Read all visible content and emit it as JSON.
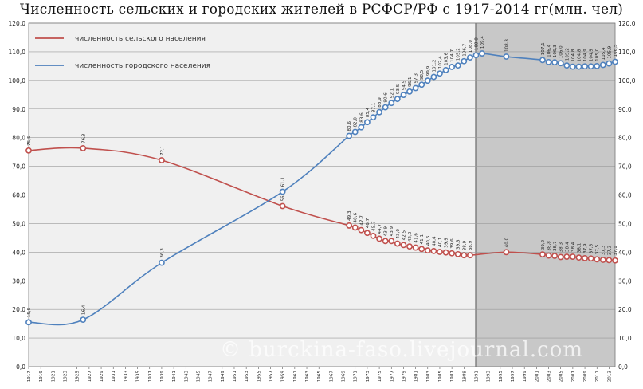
{
  "title": "Численность сельских и городских жителей в РСФСР/РФ с 1917-2014 гг(млн. чел)",
  "watermark": "© burckina-faso.livejournal.com",
  "colors": {
    "rural": "#c0504d",
    "urban": "#4f81bd",
    "shaded": "#c8c8c8",
    "plot_bg": "#f0f0f0"
  },
  "chart_data": {
    "type": "line",
    "title": "Численность сельских и городских жителей в РСФСР/РФ с 1917-2014 гг(млн. чел)",
    "xlabel": "",
    "ylabel": "",
    "xlim": [
      1917,
      2014
    ],
    "ylim": [
      0,
      120
    ],
    "ytick_step": 10,
    "grid": true,
    "legend_position": "top-left",
    "shaded_region": [
      1991,
      2014
    ],
    "x_tick_labels": [
      "1917",
      "1919",
      "1921",
      "1923",
      "1925",
      "1927",
      "1929",
      "1931",
      "1933",
      "1935",
      "1937",
      "1939",
      "1941",
      "1943",
      "1945",
      "1947",
      "1949",
      "1951",
      "1953",
      "1955",
      "1957",
      "1959",
      "1961",
      "1963",
      "1965",
      "1967",
      "1969",
      "1971",
      "1973",
      "1975",
      "1977",
      "1979",
      "1981",
      "1983",
      "1985",
      "1987",
      "1989",
      "1991",
      "1993",
      "1995",
      "1997",
      "1999",
      "2001",
      "2003",
      "2005",
      "2007",
      "2009",
      "2011",
      "2013"
    ],
    "series": [
      {
        "name": "численность сельского населения",
        "color": "#c0504d",
        "points": [
          {
            "x": 1917,
            "y": 75.5
          },
          {
            "x": 1926,
            "y": 76.3
          },
          {
            "x": 1939,
            "y": 72.1
          },
          {
            "x": 1959,
            "y": 56.1
          },
          {
            "x": 1970,
            "y": 49.3
          },
          {
            "x": 1971,
            "y": 48.6
          },
          {
            "x": 1972,
            "y": 47.7
          },
          {
            "x": 1973,
            "y": 46.7
          },
          {
            "x": 1974,
            "y": 45.7
          },
          {
            "x": 1975,
            "y": 44.7
          },
          {
            "x": 1976,
            "y": 43.9
          },
          {
            "x": 1977,
            "y": 43.9
          },
          {
            "x": 1978,
            "y": 43.0
          },
          {
            "x": 1979,
            "y": 42.5
          },
          {
            "x": 1980,
            "y": 42.0
          },
          {
            "x": 1981,
            "y": 41.6
          },
          {
            "x": 1982,
            "y": 41.1
          },
          {
            "x": 1983,
            "y": 40.6
          },
          {
            "x": 1984,
            "y": 40.4
          },
          {
            "x": 1985,
            "y": 40.1
          },
          {
            "x": 1986,
            "y": 39.9
          },
          {
            "x": 1987,
            "y": 39.6
          },
          {
            "x": 1988,
            "y": 39.3
          },
          {
            "x": 1989,
            "y": 38.9
          },
          {
            "x": 1990,
            "y": 38.9
          },
          {
            "x": 1996,
            "y": 40.0
          },
          {
            "x": 2002,
            "y": 39.2
          },
          {
            "x": 2003,
            "y": 38.8
          },
          {
            "x": 2004,
            "y": 38.7
          },
          {
            "x": 2005,
            "y": 38.3
          },
          {
            "x": 2006,
            "y": 38.4
          },
          {
            "x": 2007,
            "y": 38.4
          },
          {
            "x": 2008,
            "y": 38.1
          },
          {
            "x": 2009,
            "y": 37.9
          },
          {
            "x": 2010,
            "y": 37.8
          },
          {
            "x": 2011,
            "y": 37.5
          },
          {
            "x": 2012,
            "y": 37.3
          },
          {
            "x": 2013,
            "y": 37.2
          },
          {
            "x": 2014,
            "y": 37.1
          }
        ]
      },
      {
        "name": "численность городского населения",
        "color": "#4f81bd",
        "points": [
          {
            "x": 1917,
            "y": 15.5
          },
          {
            "x": 1926,
            "y": 16.4
          },
          {
            "x": 1939,
            "y": 36.3
          },
          {
            "x": 1959,
            "y": 61.1
          },
          {
            "x": 1970,
            "y": 80.6
          },
          {
            "x": 1971,
            "y": 82.0
          },
          {
            "x": 1972,
            "y": 83.6
          },
          {
            "x": 1973,
            "y": 85.4
          },
          {
            "x": 1974,
            "y": 87.1
          },
          {
            "x": 1975,
            "y": 88.9
          },
          {
            "x": 1976,
            "y": 90.6
          },
          {
            "x": 1977,
            "y": 92.1
          },
          {
            "x": 1978,
            "y": 93.5
          },
          {
            "x": 1979,
            "y": 94.9
          },
          {
            "x": 1980,
            "y": 96.1
          },
          {
            "x": 1981,
            "y": 97.3
          },
          {
            "x": 1982,
            "y": 98.5
          },
          {
            "x": 1983,
            "y": 99.9
          },
          {
            "x": 1984,
            "y": 101.2
          },
          {
            "x": 1985,
            "y": 102.4
          },
          {
            "x": 1986,
            "y": 103.6
          },
          {
            "x": 1987,
            "y": 104.7
          },
          {
            "x": 1988,
            "y": 105.2
          },
          {
            "x": 1989,
            "y": 106.7
          },
          {
            "x": 1990,
            "y": 108.0
          },
          {
            "x": 1991,
            "y": 108.8
          },
          {
            "x": 1992,
            "y": 109.4
          },
          {
            "x": 1996,
            "y": 108.3
          },
          {
            "x": 2002,
            "y": 107.1
          },
          {
            "x": 2003,
            "y": 106.4
          },
          {
            "x": 2004,
            "y": 106.3
          },
          {
            "x": 2005,
            "y": 106.0
          },
          {
            "x": 2006,
            "y": 105.2
          },
          {
            "x": 2007,
            "y": 104.8
          },
          {
            "x": 2008,
            "y": 104.8
          },
          {
            "x": 2009,
            "y": 104.9
          },
          {
            "x": 2010,
            "y": 104.9
          },
          {
            "x": 2011,
            "y": 105.0
          },
          {
            "x": 2012,
            "y": 105.4
          },
          {
            "x": 2013,
            "y": 105.9
          },
          {
            "x": 2014,
            "y": 106.5
          }
        ]
      }
    ]
  }
}
